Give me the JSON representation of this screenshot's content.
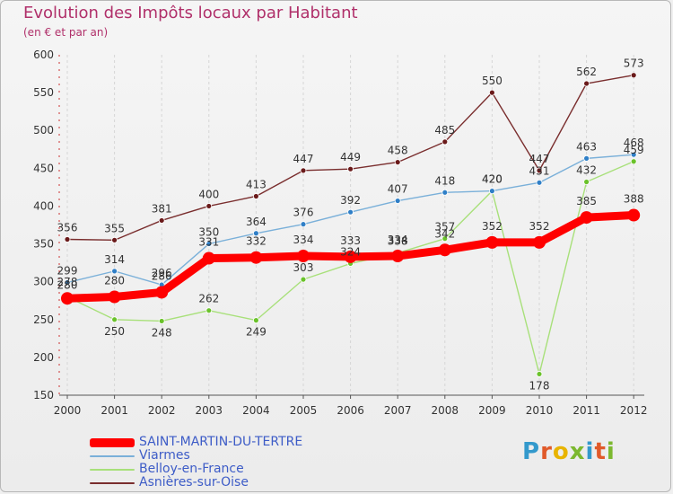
{
  "title": "Evolution des Impôts locaux par Habitant",
  "subtitle": "(en € et par an)",
  "logo_text": "Proxiti",
  "logo_colors": [
    "#3399cc",
    "#e05a2a",
    "#e8b400",
    "#7cb82f",
    "#3399cc",
    "#e05a2a",
    "#7cb82f"
  ],
  "chart_data": {
    "type": "line",
    "title": "Evolution des Impôts locaux par Habitant",
    "subtitle": "(en € et par an)",
    "x": [
      "2000",
      "2001",
      "2002",
      "2003",
      "2004",
      "2005",
      "2006",
      "2007",
      "2008",
      "2009",
      "2010",
      "2011",
      "2012"
    ],
    "ylim": [
      150,
      600
    ],
    "yticks": [
      150,
      200,
      250,
      300,
      350,
      400,
      450,
      500,
      550,
      600
    ],
    "grid": "vertical dashed",
    "legend_position": "bottom-left",
    "series": [
      {
        "name": "SAINT-MARTIN-DU-TERTRE",
        "color": "#ff0000",
        "values": [
          278,
          280,
          286,
          331,
          332,
          334,
          333,
          334,
          342,
          352,
          352,
          385,
          388
        ],
        "labels": [
          "278",
          "280",
          "286",
          "331",
          "332",
          "334",
          "333",
          "334",
          "342",
          "352",
          "352",
          "385",
          "388"
        ]
      },
      {
        "name": "Viarmes",
        "color": "#7ab0d9",
        "marker_color": "#2f7fc7",
        "values": [
          299,
          314,
          296,
          350,
          364,
          376,
          392,
          407,
          418,
          420,
          431,
          463,
          468
        ],
        "labels": [
          "299",
          "314",
          "296",
          "350",
          "364",
          "376",
          "392",
          "407",
          "418",
          "420",
          "431",
          "463",
          "468"
        ]
      },
      {
        "name": "Belloy-en-France",
        "color": "#a8e07a",
        "marker_color": "#6ac22a",
        "values": [
          280,
          250,
          248,
          262,
          249,
          303,
          324,
          338,
          357,
          420,
          178,
          432,
          459
        ],
        "labels": [
          "280",
          "250",
          "248",
          "262",
          "249",
          "303",
          "324",
          "338",
          "357",
          "420",
          "178",
          "432",
          "459"
        ]
      },
      {
        "name": "Asnières-sur-Oise",
        "color": "#7a2e2e",
        "marker_color": "#6a1a1a",
        "values": [
          356,
          355,
          381,
          400,
          413,
          447,
          449,
          458,
          485,
          550,
          447,
          562,
          573
        ],
        "labels": [
          "356",
          "355",
          "381",
          "400",
          "413",
          "447",
          "449",
          "458",
          "485",
          "550",
          "447",
          "562",
          "573"
        ]
      }
    ]
  }
}
